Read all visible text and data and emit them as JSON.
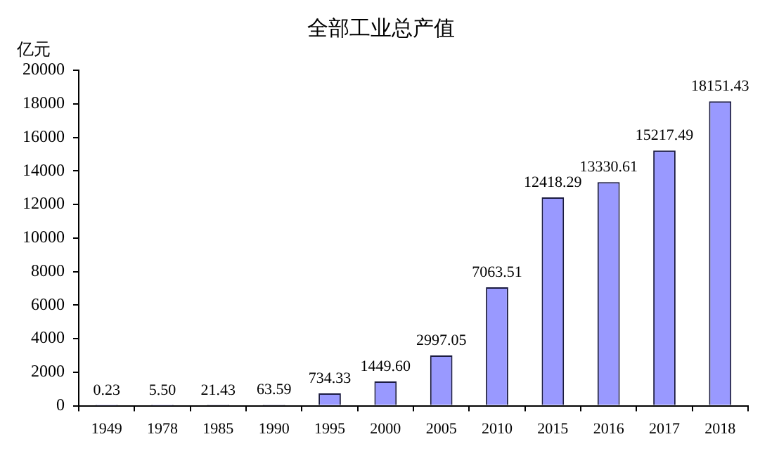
{
  "chart_data": {
    "type": "bar",
    "title": "全部工业总产值",
    "ylabel": "亿元",
    "categories": [
      "1949",
      "1978",
      "1985",
      "1990",
      "1995",
      "2000",
      "2005",
      "2010",
      "2015",
      "2016",
      "2017",
      "2018"
    ],
    "series": [
      {
        "color": "#9999ff",
        "values": [
          0.23,
          5.5,
          21.43,
          63.59,
          734.33,
          1449.6,
          2997.05,
          7063.51,
          12418.29,
          13330.61,
          15217.49,
          18151.43
        ],
        "value_labels": [
          "0.23",
          "5.50",
          "21.43",
          "63.59",
          "734.33",
          "1449.60",
          "2997.05",
          "7063.51",
          "12418.29",
          "13330.61",
          "15217.49",
          "18151.43"
        ]
      }
    ],
    "ylim": [
      0,
      20000
    ],
    "yticks": [
      0,
      2000,
      4000,
      6000,
      8000,
      10000,
      12000,
      14000,
      16000,
      18000,
      20000
    ],
    "grid": false,
    "legend": false
  }
}
